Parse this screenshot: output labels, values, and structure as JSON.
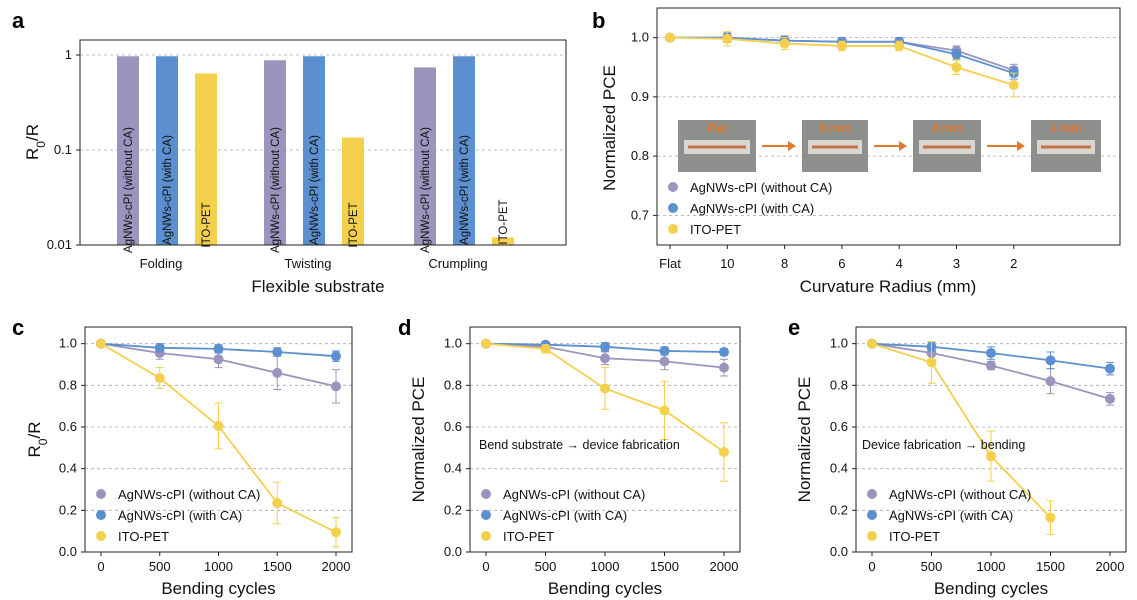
{
  "colors": {
    "AgNWs-cPI (without CA)": "#9b95be",
    "AgNWs-cPI (with CA)": "#5b8fcf",
    "ITO-PET": "#f5cf4e",
    "arrow": "#e07a2e"
  },
  "chart_data": [
    {
      "panel": "a",
      "type": "bar",
      "yscale": "log",
      "ylim": [
        0.01,
        1
      ],
      "yticks": [
        0.01,
        0.1,
        1
      ],
      "ytick_labels": [
        "0.01",
        "0.1",
        "1"
      ],
      "ylabel_main": "R",
      "ylabel_sub": "0",
      "ylabel_tail": "/R",
      "xlabel": "Flexible substrate",
      "grid": "horizontal dashed",
      "categories": [
        "Folding",
        "Twisting",
        "Crumpling"
      ],
      "series": [
        {
          "name": "AgNWs-cPI (without CA)",
          "values": [
            0.97,
            0.88,
            0.74
          ]
        },
        {
          "name": "AgNWs-cPI (with CA)",
          "values": [
            0.97,
            0.97,
            0.97
          ]
        },
        {
          "name": "ITO-PET",
          "values": [
            0.64,
            0.135,
            0.012
          ]
        }
      ],
      "bar_labels": [
        "AgNWs-cPI (without CA)",
        "AgNWs-cPI (with CA)",
        "ITO-PET"
      ]
    },
    {
      "panel": "b",
      "type": "line",
      "x": [
        "Flat",
        "10",
        "8",
        "6",
        "4",
        "3",
        "2"
      ],
      "xlabel": "Curvature Radius (mm)",
      "ylabel": "Normalized PCE",
      "ylim": [
        0.65,
        1.05
      ],
      "yticks": [
        0.7,
        0.8,
        0.9,
        1.0
      ],
      "ytick_labels": [
        "0.7",
        "0.8",
        "0.9",
        "1.0"
      ],
      "legend": "left",
      "grid": "horizontal dashed",
      "series": [
        {
          "name": "AgNWs-cPI (without CA)",
          "values": [
            1.0,
            1.0,
            0.995,
            0.993,
            0.993,
            0.978,
            0.945
          ],
          "err": [
            0,
            0.008,
            0.008,
            0.007,
            0.007,
            0.008,
            0.01
          ]
        },
        {
          "name": "AgNWs-cPI (with CA)",
          "values": [
            1.0,
            1.0,
            0.995,
            0.993,
            0.993,
            0.972,
            0.94
          ],
          "err": [
            0,
            0.008,
            0.007,
            0.007,
            0.007,
            0.008,
            0.01
          ]
        },
        {
          "name": "ITO-PET",
          "values": [
            1.0,
            0.998,
            0.99,
            0.986,
            0.986,
            0.95,
            0.92
          ],
          "err": [
            0,
            0.012,
            0.01,
            0.008,
            0.008,
            0.012,
            0.02
          ]
        }
      ],
      "photo_labels": [
        "Flat",
        "8 mm",
        "4 mm",
        "2 mm"
      ]
    },
    {
      "panel": "c",
      "type": "line",
      "x": [
        0,
        500,
        1000,
        1500,
        2000
      ],
      "xlabel": "Bending cycles",
      "ylabel_main": "R",
      "ylabel_sub": "0",
      "ylabel_tail": "/R",
      "ylim": [
        0,
        1.08
      ],
      "yticks": [
        0.0,
        0.2,
        0.4,
        0.6,
        0.8,
        1.0
      ],
      "ytick_labels": [
        "0.0",
        "0.2",
        "0.4",
        "0.6",
        "0.8",
        "1.0"
      ],
      "legend": "bottom-left",
      "grid": "horizontal dashed",
      "series": [
        {
          "name": "AgNWs-cPI (without CA)",
          "values": [
            1.0,
            0.955,
            0.925,
            0.86,
            0.795
          ],
          "err": [
            0,
            0.03,
            0.04,
            0.08,
            0.08
          ]
        },
        {
          "name": "AgNWs-cPI (with CA)",
          "values": [
            1.0,
            0.98,
            0.975,
            0.96,
            0.94
          ],
          "err": [
            0,
            0.02,
            0.02,
            0.02,
            0.025
          ]
        },
        {
          "name": "ITO-PET",
          "values": [
            1.0,
            0.835,
            0.605,
            0.235,
            0.095
          ],
          "err": [
            0,
            0.05,
            0.11,
            0.1,
            0.07
          ]
        }
      ]
    },
    {
      "panel": "d",
      "type": "line",
      "x": [
        0,
        500,
        1000,
        1500,
        2000
      ],
      "xlabel": "Bending cycles",
      "ylabel": "Normalized PCE",
      "ylim": [
        0,
        1.08
      ],
      "yticks": [
        0.0,
        0.2,
        0.4,
        0.6,
        0.8,
        1.0
      ],
      "ytick_labels": [
        "0.0",
        "0.2",
        "0.4",
        "0.6",
        "0.8",
        "1.0"
      ],
      "annotation": "Bend substrate → device fabrication",
      "legend": "bottom-left",
      "grid": "horizontal dashed",
      "series": [
        {
          "name": "AgNWs-cPI (without CA)",
          "values": [
            1.0,
            0.985,
            0.93,
            0.915,
            0.885
          ],
          "err": [
            0,
            0.02,
            0.03,
            0.04,
            0.04
          ]
        },
        {
          "name": "AgNWs-cPI (with CA)",
          "values": [
            1.0,
            0.995,
            0.985,
            0.965,
            0.96
          ],
          "err": [
            0,
            0.015,
            0.02,
            0.02,
            0.015
          ]
        },
        {
          "name": "ITO-PET",
          "values": [
            1.0,
            0.975,
            0.785,
            0.68,
            0.48
          ],
          "err": [
            0,
            0.02,
            0.1,
            0.14,
            0.14
          ]
        }
      ]
    },
    {
      "panel": "e",
      "type": "line",
      "x": [
        0,
        500,
        1000,
        1500,
        2000
      ],
      "xlabel": "Bending cycles",
      "ylabel": "Normalized PCE",
      "ylim": [
        0,
        1.08
      ],
      "yticks": [
        0.0,
        0.2,
        0.4,
        0.6,
        0.8,
        1.0
      ],
      "ytick_labels": [
        "0.0",
        "0.2",
        "0.4",
        "0.6",
        "0.8",
        "1.0"
      ],
      "annotation": "Device fabrication → bending",
      "legend": "bottom-left",
      "grid": "horizontal dashed",
      "series": [
        {
          "name": "AgNWs-cPI (without CA)",
          "values": [
            1.0,
            0.955,
            0.895,
            0.82,
            0.735
          ],
          "err": [
            0,
            0.03,
            0.02,
            0.06,
            0.03
          ]
        },
        {
          "name": "AgNWs-cPI (with CA)",
          "values": [
            1.0,
            0.985,
            0.955,
            0.92,
            0.88
          ],
          "err": [
            0,
            0.02,
            0.03,
            0.04,
            0.03
          ]
        },
        {
          "name": "ITO-PET",
          "values": [
            1.0,
            0.91,
            0.46,
            0.165,
            null
          ],
          "err": [
            0,
            0.1,
            0.12,
            0.08,
            null
          ]
        }
      ]
    }
  ]
}
